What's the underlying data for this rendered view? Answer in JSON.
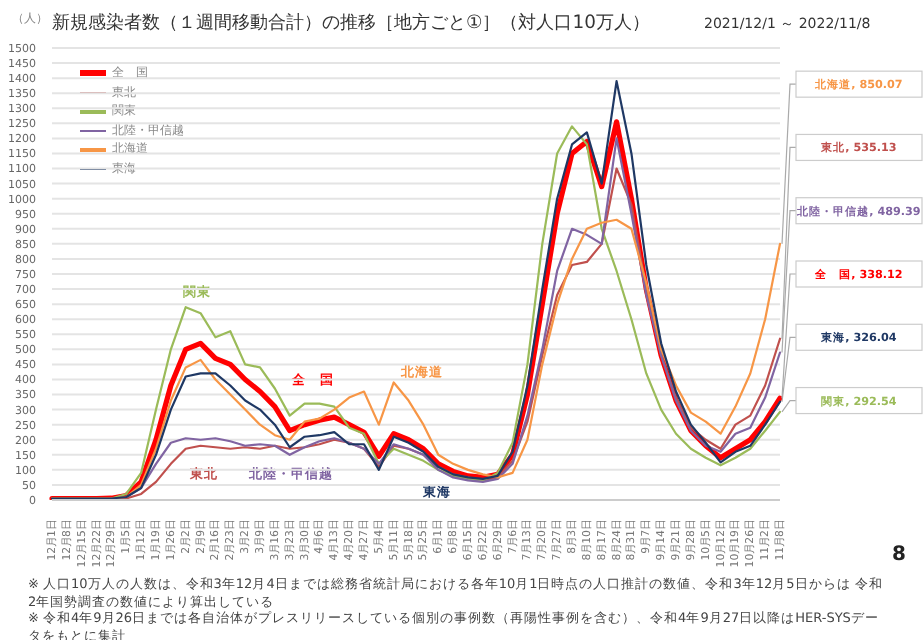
{
  "chart_data": {
    "type": "line",
    "title": "新規感染者数（１週間移動合計）の推移［地方ごと①］（対人口10万人）",
    "subtitle": "2021/12/1 ～ 2022/11/8",
    "categories": [
      "12月1日",
      "12月8日",
      "12月15日",
      "12月22日",
      "12月29日",
      "1月5日",
      "1月12日",
      "1月19日",
      "1月26日",
      "2月2日",
      "2月9日",
      "2月16日",
      "2月23日",
      "3月2日",
      "3月9日",
      "3月16日",
      "3月23日",
      "3月30日",
      "4月6日",
      "4月13日",
      "4月20日",
      "4月27日",
      "5月4日",
      "5月11日",
      "5月18日",
      "5月25日",
      "6月1日",
      "6月8日",
      "6月15日",
      "6月22日",
      "6月29日",
      "7月6日",
      "7月13日",
      "7月20日",
      "7月27日",
      "8月3日",
      "8月10日",
      "8月17日",
      "8月24日",
      "8月31日",
      "9月7日",
      "9月14日",
      "9月21日",
      "9月28日",
      "10月5日",
      "10月12日",
      "10月19日",
      "10月26日",
      "11月2日",
      "11月8日"
    ],
    "series": [
      {
        "name": "全　国",
        "color": "#ff0000",
        "values": [
          5,
          5,
          5,
          5,
          6,
          15,
          60,
          200,
          380,
          500,
          520,
          470,
          450,
          400,
          360,
          310,
          230,
          250,
          265,
          275,
          250,
          225,
          145,
          220,
          200,
          170,
          120,
          95,
          80,
          75,
          85,
          150,
          350,
          650,
          950,
          1150,
          1190,
          1040,
          1255,
          1000,
          700,
          480,
          330,
          230,
          180,
          140,
          170,
          200,
          260,
          338.12
        ]
      },
      {
        "name": "東北",
        "color": "#c0504d",
        "values": [
          null,
          null,
          null,
          null,
          3,
          5,
          20,
          60,
          120,
          170,
          180,
          175,
          170,
          175,
          170,
          180,
          170,
          175,
          185,
          200,
          190,
          170,
          110,
          180,
          170,
          150,
          110,
          85,
          75,
          65,
          75,
          130,
          260,
          480,
          680,
          780,
          790,
          850,
          1100,
          980,
          700,
          480,
          340,
          240,
          200,
          170,
          250,
          280,
          380,
          535.13
        ]
      },
      {
        "name": "関東",
        "color": "#9bbb59",
        "values": [
          5,
          5,
          5,
          5,
          5,
          20,
          90,
          300,
          500,
          640,
          620,
          540,
          560,
          450,
          440,
          370,
          280,
          320,
          320,
          310,
          240,
          220,
          120,
          170,
          150,
          130,
          100,
          80,
          70,
          65,
          90,
          190,
          450,
          850,
          1150,
          1240,
          1180,
          900,
          760,
          600,
          420,
          300,
          220,
          170,
          140,
          115,
          140,
          170,
          230,
          292.54
        ]
      },
      {
        "name": "北陸・甲信越",
        "color": "#8064a2",
        "values": [
          null,
          null,
          null,
          null,
          4,
          10,
          40,
          120,
          190,
          205,
          200,
          205,
          195,
          180,
          185,
          180,
          150,
          175,
          195,
          205,
          190,
          170,
          120,
          185,
          170,
          150,
          100,
          75,
          65,
          60,
          70,
          120,
          280,
          500,
          760,
          900,
          880,
          850,
          1200,
          950,
          680,
          480,
          330,
          230,
          180,
          160,
          220,
          240,
          340,
          489.39
        ]
      },
      {
        "name": "北海道",
        "color": "#f79646",
        "values": [
          5,
          5,
          5,
          5,
          5,
          10,
          50,
          170,
          330,
          440,
          465,
          400,
          350,
          300,
          250,
          215,
          200,
          260,
          270,
          300,
          340,
          360,
          250,
          390,
          330,
          250,
          150,
          120,
          100,
          85,
          75,
          90,
          200,
          450,
          650,
          800,
          900,
          920,
          930,
          900,
          720,
          500,
          380,
          290,
          260,
          220,
          310,
          420,
          600,
          850.07
        ]
      },
      {
        "name": "東海",
        "color": "#1f3864",
        "values": [
          5,
          5,
          5,
          5,
          5,
          10,
          40,
          150,
          300,
          410,
          420,
          420,
          380,
          330,
          300,
          250,
          175,
          210,
          215,
          225,
          185,
          185,
          100,
          210,
          190,
          160,
          110,
          85,
          75,
          70,
          80,
          160,
          380,
          700,
          1000,
          1180,
          1220,
          1050,
          1390,
          1150,
          780,
          520,
          360,
          250,
          190,
          125,
          160,
          180,
          250,
          326.04
        ]
      }
    ],
    "ylim": [
      0,
      1500
    ],
    "yticks": [
      0,
      50,
      100,
      150,
      200,
      250,
      300,
      350,
      400,
      450,
      500,
      550,
      600,
      650,
      700,
      750,
      800,
      850,
      900,
      950,
      1000,
      1050,
      1100,
      1150,
      1200,
      1250,
      1300,
      1350,
      1400,
      1450,
      1500
    ],
    "grid": "y",
    "legend": "top left",
    "marker": "none",
    "line_style": "solid",
    "annotations": [
      "（人）",
      "関東",
      "全　国",
      "北海道",
      "東北",
      "北陸・甲信越",
      "東海",
      "北海道, 850.07",
      "東北, 535.13",
      "北陸・甲信越, 489.39",
      "全　国, 338.12",
      "東海, 326.04",
      "関東, 292.54",
      "※ 人口10万人の人数は、令和3年12月4日までは総務省統計局における各年10月1日時点の人口推計の数値、令和3年12月5日からは 令和2年国勢調査の数値により算出している",
      "※ 令和4年9月26日までは各自治体がプレスリリースしている個別の事例数（再陽性事例を含む）、令和4年9月27日以降はHER-SYSデータをもとに集計",
      "8"
    ]
  }
}
